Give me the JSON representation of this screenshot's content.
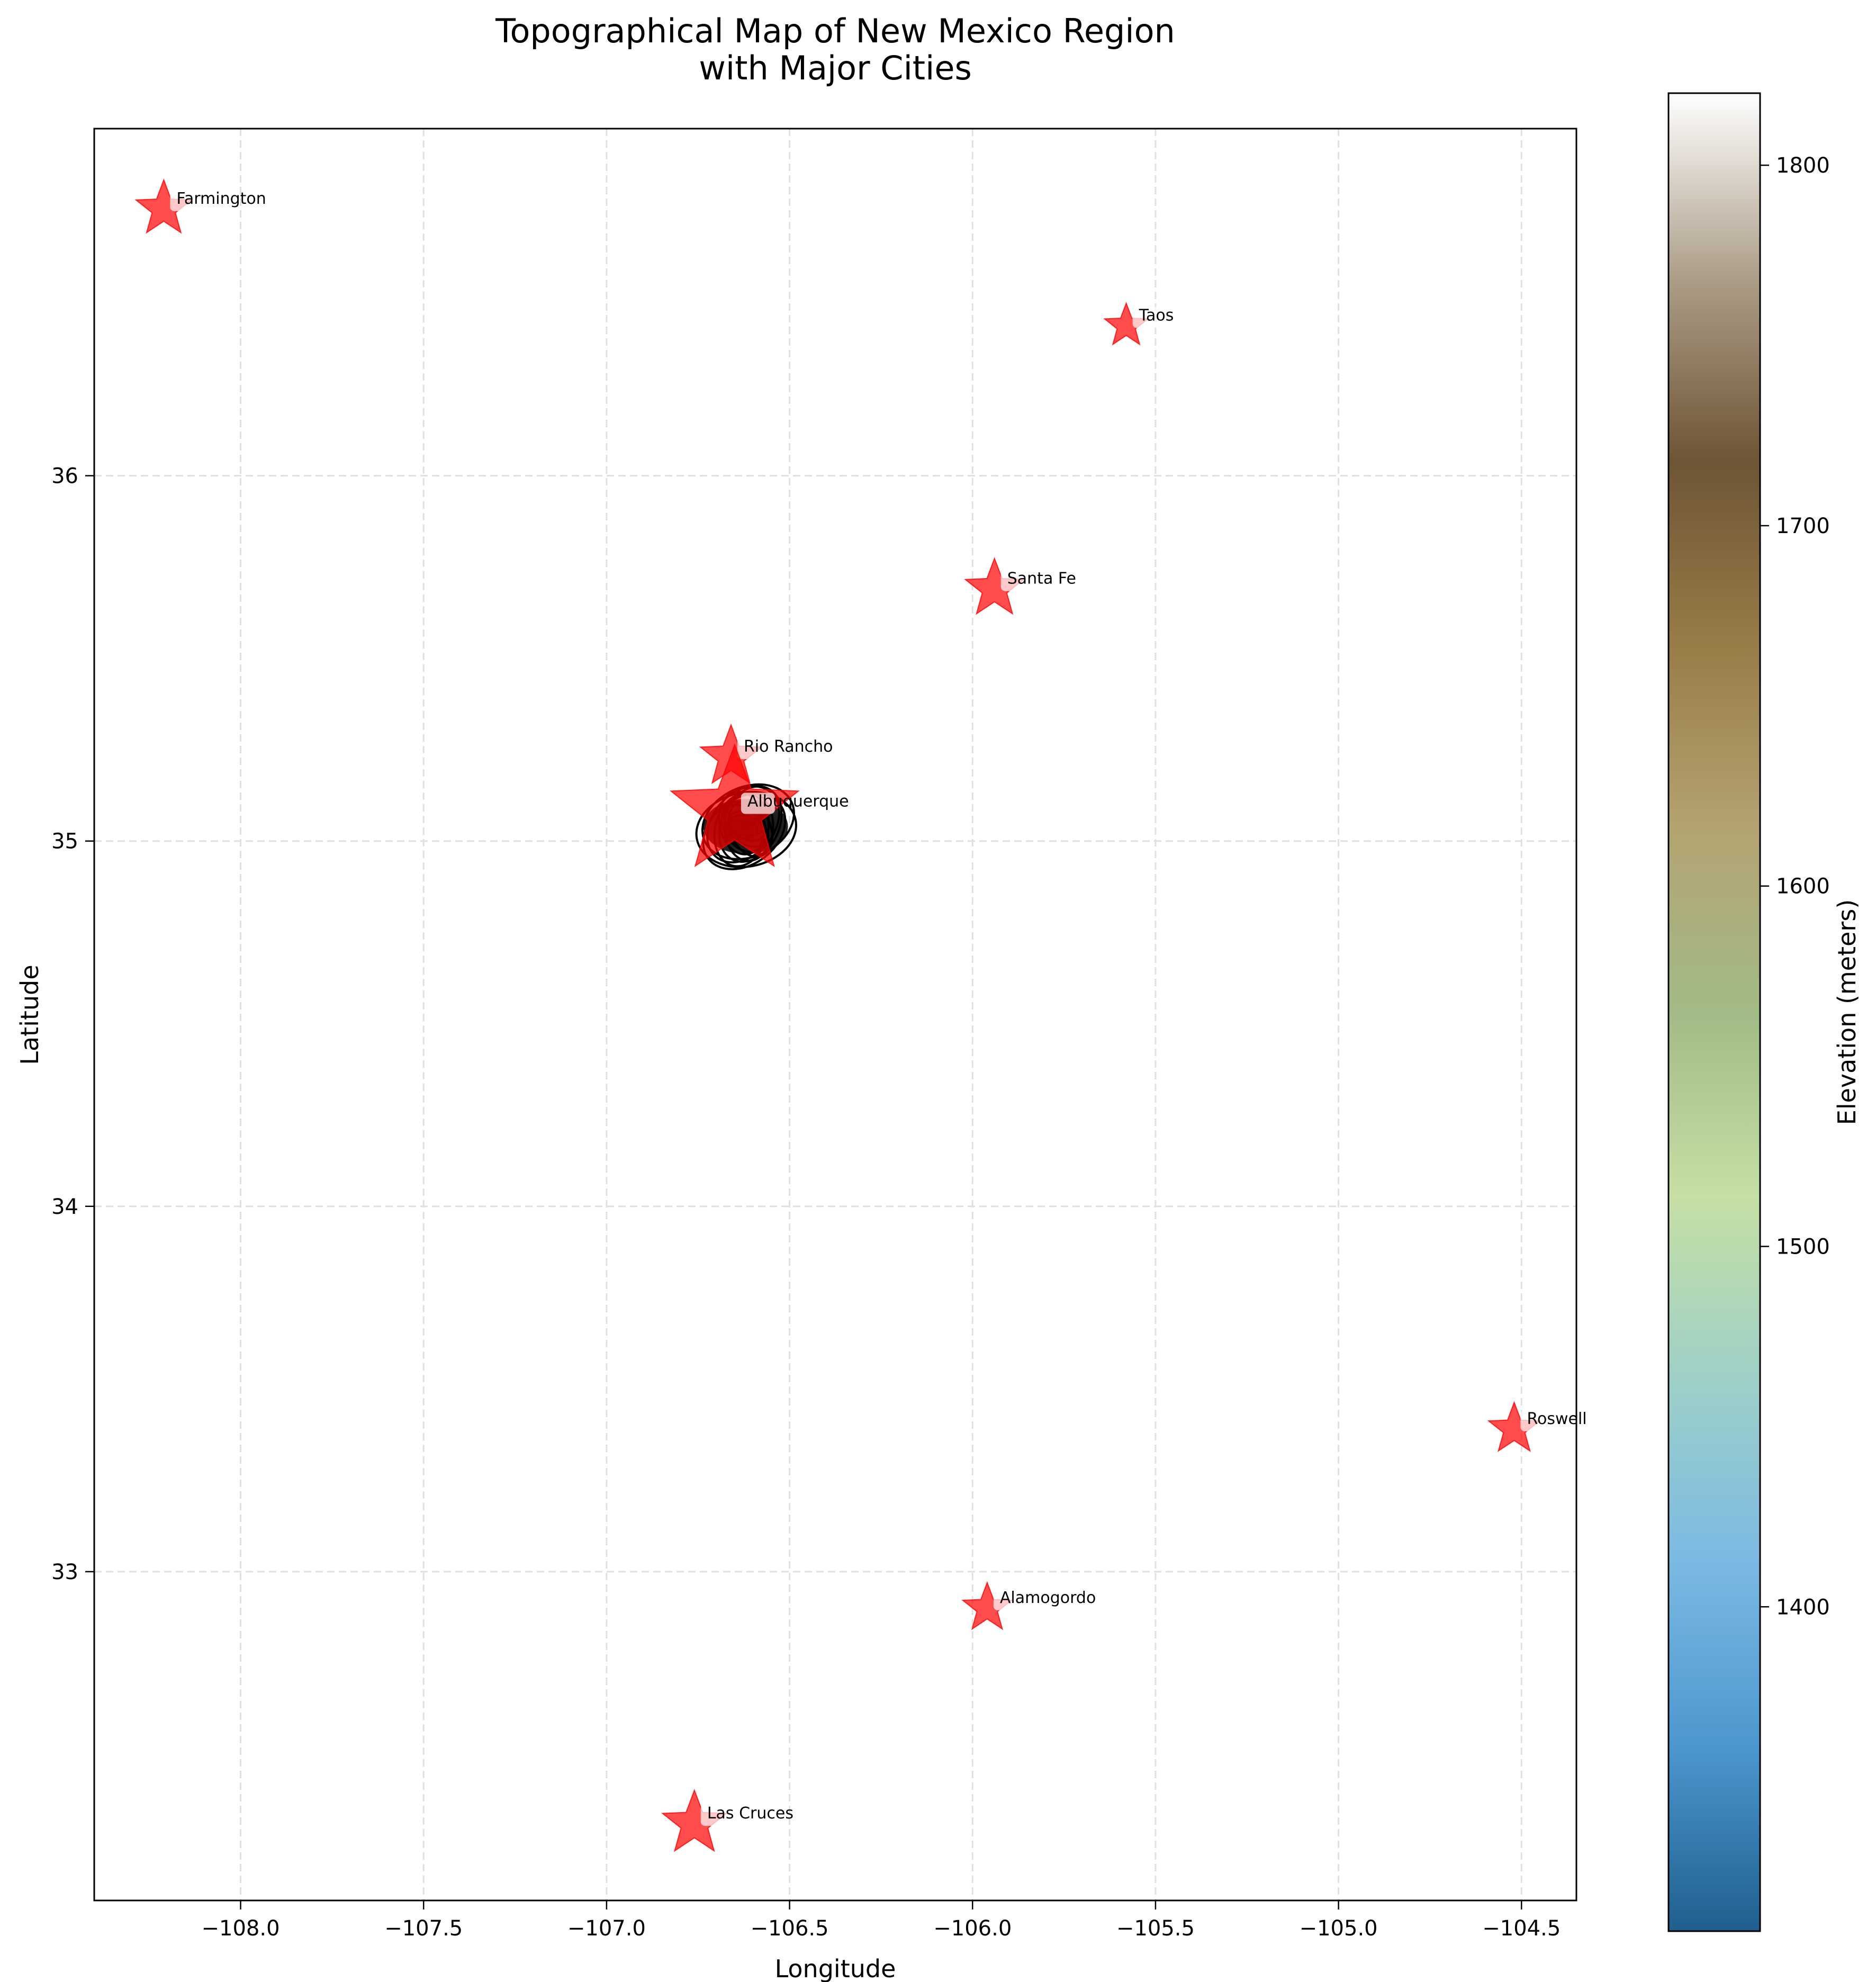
{
  "chart_data": {
    "type": "scatter",
    "title": "Topographical Map of New Mexico Region\nwith Major Cities",
    "xlabel": "Longitude",
    "ylabel": "Latitude",
    "xlim": [
      -108.4,
      -104.35
    ],
    "ylim": [
      32.1,
      36.95
    ],
    "grid": true,
    "x_ticks": [
      -108.0,
      -107.5,
      -107.0,
      -106.5,
      -106.0,
      -105.5,
      -105.0,
      -104.5
    ],
    "x_tick_labels": [
      "−108.0",
      "−107.5",
      "−107.0",
      "−106.5",
      "−106.0",
      "−105.5",
      "−105.0",
      "−104.5"
    ],
    "y_ticks": [
      33,
      34,
      35,
      36
    ],
    "y_tick_labels": [
      "33",
      "34",
      "35",
      "36"
    ],
    "cities": [
      {
        "name": "Farmington",
        "lon": -108.21,
        "lat": 36.73,
        "size": 1.0
      },
      {
        "name": "Taos",
        "lon": -105.58,
        "lat": 36.41,
        "size": 0.78
      },
      {
        "name": "Santa Fe",
        "lon": -105.94,
        "lat": 35.69,
        "size": 1.05
      },
      {
        "name": "Rio Rancho",
        "lon": -106.66,
        "lat": 35.23,
        "size": 1.1
      },
      {
        "name": "Albuquerque",
        "lon": -106.65,
        "lat": 35.08,
        "size": 2.3
      },
      {
        "name": "Roswell",
        "lon": -104.52,
        "lat": 33.39,
        "size": 0.92
      },
      {
        "name": "Alamogordo",
        "lon": -105.96,
        "lat": 32.9,
        "size": 0.88
      },
      {
        "name": "Las Cruces",
        "lon": -106.76,
        "lat": 32.31,
        "size": 1.15
      }
    ],
    "city_color": "#ff0000",
    "contour_cluster": {
      "lon": -106.62,
      "lat": 35.04,
      "contour_color": "#000000"
    },
    "colorbar": {
      "label": "Elevation (meters)",
      "range": [
        1310,
        1820
      ],
      "ticks": [
        1400,
        1500,
        1600,
        1700,
        1800
      ],
      "tick_labels": [
        "1400",
        "1500",
        "1600",
        "1700",
        "1800"
      ],
      "colormap": "gist_earth-like",
      "colors": [
        "#1f5f8e",
        "#4c97cf",
        "#7bb9e3",
        "#9ed0c8",
        "#c6dfa4",
        "#a2bb86",
        "#b4a372",
        "#987c48",
        "#6e5535",
        "#ad9e89",
        "#ffffff"
      ]
    }
  }
}
